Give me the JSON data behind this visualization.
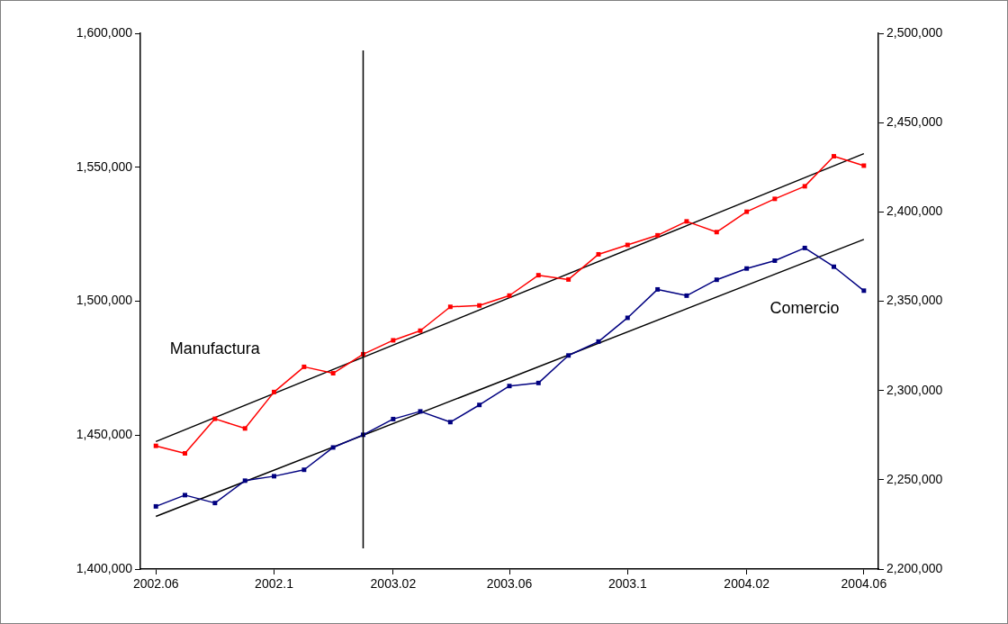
{
  "chart_data": {
    "type": "line",
    "x": [
      "2002-06",
      "2002-07",
      "2002-08",
      "2002-09",
      "2002-10",
      "2002-11",
      "2002-12",
      "2003-01",
      "2003-02",
      "2003-03",
      "2003-04",
      "2003-05",
      "2003-06",
      "2003-07",
      "2003-08",
      "2003-09",
      "2003-10",
      "2003-11",
      "2003-12",
      "2004-01",
      "2004-02",
      "2004-03",
      "2004-04",
      "2004-05",
      "2004-06"
    ],
    "series": [
      {
        "name": "Manufactura",
        "color": "#ff0000",
        "axis": "y",
        "marker": "square",
        "values": [
          1446000,
          1443200,
          1456100,
          1452500,
          1466100,
          1475500,
          1473100,
          1480200,
          1485400,
          1489000,
          1497900,
          1498400,
          1502100,
          1509700,
          1508100,
          1517500,
          1521000,
          1524600,
          1529800,
          1525800,
          1533400,
          1538200,
          1542900,
          1554100,
          1550600
        ]
      },
      {
        "name": "Comercio",
        "color": "#000080",
        "axis": "y2",
        "marker": "square",
        "values": [
          2235100,
          2241400,
          2237000,
          2249500,
          2252000,
          2255600,
          2268100,
          2275200,
          2284000,
          2288300,
          2282300,
          2291900,
          2302500,
          2304200,
          2319600,
          2327400,
          2340700,
          2356600,
          2353100,
          2362000,
          2368300,
          2372700,
          2379800,
          2369300,
          2355900
        ]
      },
      {
        "type": "line",
        "color": "#000000",
        "axis": "y",
        "marker": "none",
        "x": [
          "2002-06",
          "2004-06"
        ],
        "values": [
          1447600,
          1555100
        ]
      },
      {
        "type": "line",
        "color": "#000000",
        "axis": "y2",
        "marker": "none",
        "x": [
          "2002-06",
          "2004-06"
        ],
        "values": [
          2229500,
          2384600
        ]
      }
    ],
    "xlim": [
      "2002-05-16",
      "2004-06-16"
    ],
    "xticks": [
      {
        "value": "2002-06",
        "label": "2002.06"
      },
      {
        "value": "2002-10",
        "label": "2002.1"
      },
      {
        "value": "2003-02",
        "label": "2003.02"
      },
      {
        "value": "2003-06",
        "label": "2003.06"
      },
      {
        "value": "2003-10",
        "label": "2003.1"
      },
      {
        "value": "2004-02",
        "label": "2004.02"
      },
      {
        "value": "2004-06",
        "label": "2004.06"
      }
    ],
    "ylim": [
      1400000,
      1600000
    ],
    "yticks": [
      {
        "value": 1400000,
        "label": "1,400,000"
      },
      {
        "value": 1450000,
        "label": "1,450,000"
      },
      {
        "value": 1500000,
        "label": "1,500,000"
      },
      {
        "value": 1550000,
        "label": "1,550,000"
      },
      {
        "value": 1600000,
        "label": "1,600,000"
      }
    ],
    "y2lim": [
      2200000,
      2500000
    ],
    "y2ticks": [
      {
        "value": 2200000,
        "label": "2,200,000"
      },
      {
        "value": 2250000,
        "label": "2,250,000"
      },
      {
        "value": 2300000,
        "label": "2,300,000"
      },
      {
        "value": 2350000,
        "label": "2,350,000"
      },
      {
        "value": 2400000,
        "label": "2,400,000"
      },
      {
        "value": 2450000,
        "label": "2,450,000"
      },
      {
        "value": 2500000,
        "label": "2,500,000"
      }
    ],
    "ref_lines": [
      {
        "axis": "x",
        "value": "2003-01",
        "color": "#000000"
      }
    ],
    "grid": false,
    "legend": false
  }
}
